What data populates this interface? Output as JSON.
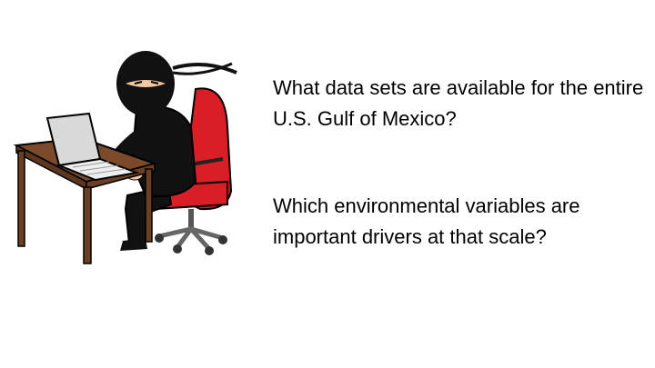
{
  "slide": {
    "questions": [
      {
        "text": "What data sets are available for the entire U.S. Gulf of Mexico?"
      },
      {
        "text": "Which environmental variables are important drivers at that scale?"
      }
    ],
    "illustration": {
      "icon": "ninja-at-computer-icon",
      "colors": {
        "ninja": "#111111",
        "chair": "#d81f26",
        "desk": "#7a4a2a",
        "laptop": "#d9d9d9",
        "skin": "#f2c8a0"
      }
    }
  }
}
